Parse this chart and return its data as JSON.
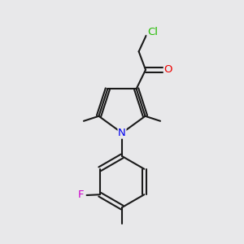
{
  "background_color": "#e8e8ea",
  "bond_color": "#1a1a1a",
  "atom_colors": {
    "N": "#0000ee",
    "O": "#ee0000",
    "Cl": "#22bb00",
    "F": "#cc00cc"
  },
  "figsize": [
    3.0,
    3.0
  ],
  "dpi": 100,
  "lw": 1.5,
  "fontsize": 9.5
}
